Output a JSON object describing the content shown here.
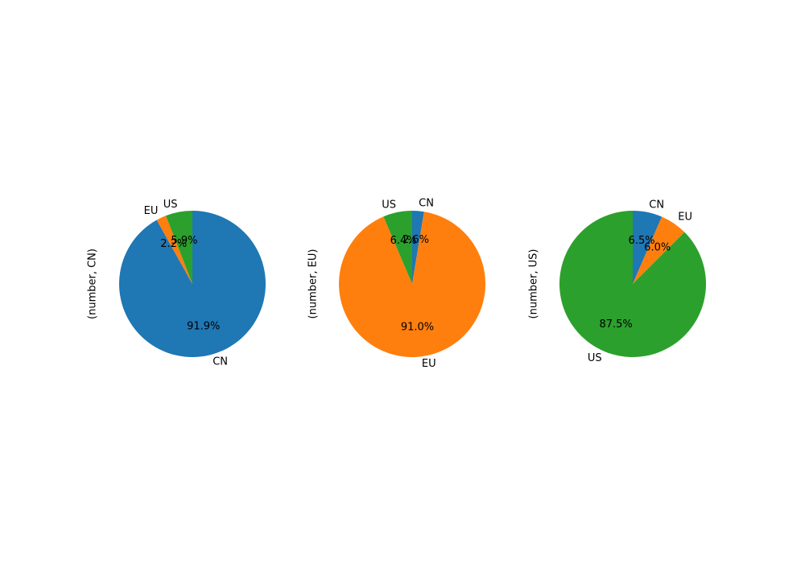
{
  "colors": {
    "CN": "#1f77b4",
    "EU": "#ff7f0e",
    "US": "#2ca02c"
  },
  "chart_data": [
    {
      "type": "pie",
      "ylabel": "(number, CN)",
      "startangle": 90,
      "counterclock": false,
      "slices": [
        {
          "label": "CN",
          "value": 91.9,
          "pct_label": "91.9%"
        },
        {
          "label": "EU",
          "value": 2.2,
          "pct_label": "2.2%"
        },
        {
          "label": "US",
          "value": 5.9,
          "pct_label": "5.9%"
        }
      ]
    },
    {
      "type": "pie",
      "ylabel": "(number, EU)",
      "startangle": 90,
      "counterclock": false,
      "slices": [
        {
          "label": "CN",
          "value": 2.6,
          "pct_label": "2.6%"
        },
        {
          "label": "EU",
          "value": 91.0,
          "pct_label": "91.0%"
        },
        {
          "label": "US",
          "value": 6.4,
          "pct_label": "6.4%"
        }
      ]
    },
    {
      "type": "pie",
      "ylabel": "(number, US)",
      "startangle": 90,
      "counterclock": false,
      "slices": [
        {
          "label": "CN",
          "value": 6.5,
          "pct_label": "6.5%"
        },
        {
          "label": "EU",
          "value": 6.0,
          "pct_label": "6.0%"
        },
        {
          "label": "US",
          "value": 87.5,
          "pct_label": "87.5%"
        }
      ]
    }
  ]
}
